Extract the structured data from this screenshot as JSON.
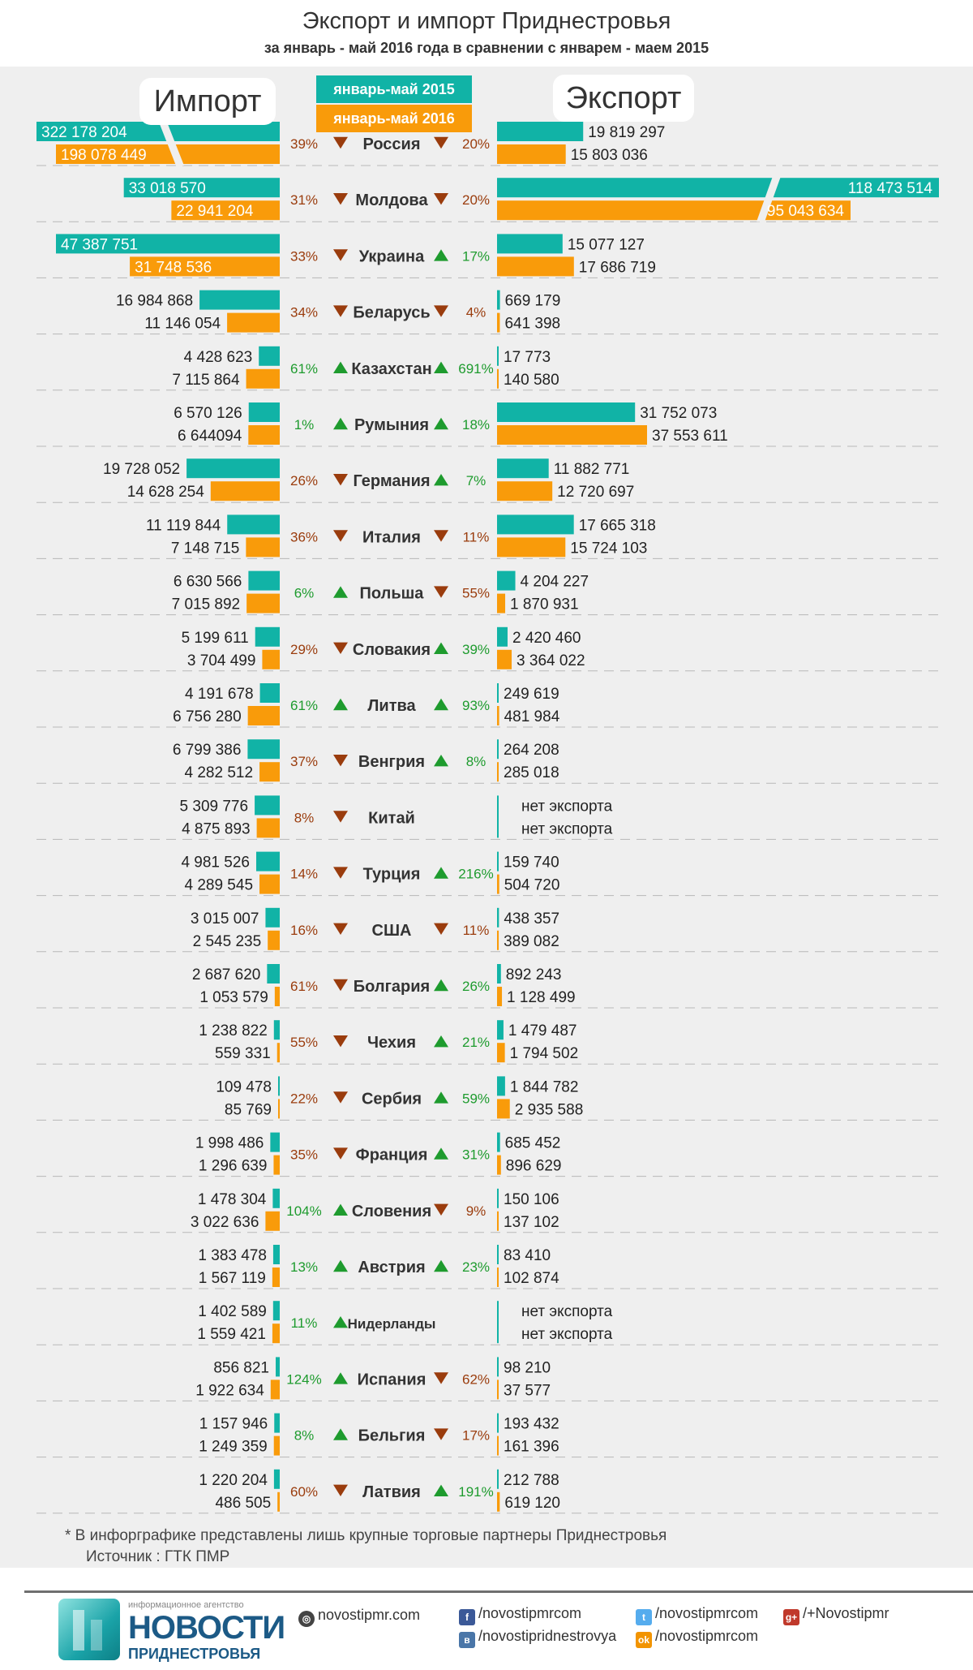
{
  "title": "Экспорт и импорт Приднестровья",
  "subtitle": "за январь - май 2016 года в сравнении с январем - маем  2015",
  "labels": {
    "import": "Импорт",
    "export": "Экспорт"
  },
  "legend": {
    "y2015": "январь-май 2015",
    "y2016": "январь-май 2016"
  },
  "colors": {
    "y2015": "#11b3a6",
    "y2016": "#f99b0a",
    "down": "#9a3c0d",
    "up": "#1e9b2e"
  },
  "chart_data": {
    "type": "bar",
    "series_names": [
      "январь-май 2015",
      "январь-май 2016"
    ],
    "countries": [
      {
        "name": "Россия",
        "imp": [
          322178204,
          198078449
        ],
        "imp_txt": [
          "322 178 204",
          "198 078 449"
        ],
        "imp_pct": "39%",
        "imp_dir": "down",
        "exp": [
          19819297,
          15803036
        ],
        "exp_txt": [
          "19 819 297",
          "15 803 036"
        ],
        "exp_pct": "20%",
        "exp_dir": "down",
        "imp_break": true
      },
      {
        "name": "Молдова",
        "imp": [
          33018570,
          22941204
        ],
        "imp_txt": [
          "33 018 570",
          "22 941 204"
        ],
        "imp_pct": "31%",
        "imp_dir": "down",
        "exp": [
          118473514,
          95043634
        ],
        "exp_txt": [
          "118 473 514",
          "95 043 634"
        ],
        "exp_pct": "20%",
        "exp_dir": "down",
        "exp_break": true
      },
      {
        "name": "Украина",
        "imp": [
          47387751,
          31748536
        ],
        "imp_txt": [
          "47 387 751",
          "31 748 536"
        ],
        "imp_pct": "33%",
        "imp_dir": "down",
        "exp": [
          15077127,
          17686719
        ],
        "exp_txt": [
          "15 077 127",
          "17 686 719"
        ],
        "exp_pct": "17%",
        "exp_dir": "up"
      },
      {
        "name": "Беларусь",
        "imp": [
          16984868,
          11146054
        ],
        "imp_txt": [
          "16 984 868",
          "11 146 054"
        ],
        "imp_pct": "34%",
        "imp_dir": "down",
        "exp": [
          669179,
          641398
        ],
        "exp_txt": [
          "669 179",
          "641 398"
        ],
        "exp_pct": "4%",
        "exp_dir": "down"
      },
      {
        "name": "Казахстан",
        "imp": [
          4428623,
          7115864
        ],
        "imp_txt": [
          "4 428 623",
          "7 115 864"
        ],
        "imp_pct": "61%",
        "imp_dir": "up",
        "exp": [
          17773,
          140580
        ],
        "exp_txt": [
          "17 773",
          "140 580"
        ],
        "exp_pct": "691%",
        "exp_dir": "up"
      },
      {
        "name": "Румыния",
        "imp": [
          6570126,
          6644094
        ],
        "imp_txt": [
          "6 570 126",
          "6 644094"
        ],
        "imp_pct": "1%",
        "imp_dir": "up",
        "exp": [
          31752073,
          37553611
        ],
        "exp_txt": [
          "31 752 073",
          "37 553 611"
        ],
        "exp_pct": "18%",
        "exp_dir": "up"
      },
      {
        "name": "Германия",
        "imp": [
          19728052,
          14628254
        ],
        "imp_txt": [
          "19 728 052",
          "14 628 254"
        ],
        "imp_pct": "26%",
        "imp_dir": "down",
        "exp": [
          11882771,
          12720697
        ],
        "exp_txt": [
          "11 882 771",
          "12 720 697"
        ],
        "exp_pct": "7%",
        "exp_dir": "up"
      },
      {
        "name": "Италия",
        "imp": [
          11119844,
          7148715
        ],
        "imp_txt": [
          "11 119 844",
          "7 148 715"
        ],
        "imp_pct": "36%",
        "imp_dir": "down",
        "exp": [
          17665318,
          15724103
        ],
        "exp_txt": [
          "17 665 318",
          "15 724 103"
        ],
        "exp_pct": "11%",
        "exp_dir": "down"
      },
      {
        "name": "Польша",
        "imp": [
          6630566,
          7015892
        ],
        "imp_txt": [
          "6 630 566",
          "7 015 892"
        ],
        "imp_pct": "6%",
        "imp_dir": "up",
        "exp": [
          4204227,
          1870931
        ],
        "exp_txt": [
          "4 204 227",
          "1 870 931"
        ],
        "exp_pct": "55%",
        "exp_dir": "down"
      },
      {
        "name": "Словакия",
        "imp": [
          5199611,
          3704499
        ],
        "imp_txt": [
          "5 199 611",
          "3 704 499"
        ],
        "imp_pct": "29%",
        "imp_dir": "down",
        "exp": [
          2420460,
          3364022
        ],
        "exp_txt": [
          "2 420 460",
          "3 364 022"
        ],
        "exp_pct": "39%",
        "exp_dir": "up"
      },
      {
        "name": "Литва",
        "imp": [
          4191678,
          6756280
        ],
        "imp_txt": [
          "4 191 678",
          "6 756 280"
        ],
        "imp_pct": "61%",
        "imp_dir": "up",
        "exp": [
          249619,
          481984
        ],
        "exp_txt": [
          "249 619",
          "481 984"
        ],
        "exp_pct": "93%",
        "exp_dir": "up"
      },
      {
        "name": "Венгрия",
        "imp": [
          6799386,
          4282512
        ],
        "imp_txt": [
          "6 799 386",
          "4 282 512"
        ],
        "imp_pct": "37%",
        "imp_dir": "down",
        "exp": [
          264208,
          285018
        ],
        "exp_txt": [
          "264 208",
          "285 018"
        ],
        "exp_pct": "8%",
        "exp_dir": "up"
      },
      {
        "name": "Китай",
        "imp": [
          5309776,
          4875893
        ],
        "imp_txt": [
          "5 309 776",
          "4 875 893"
        ],
        "imp_pct": "8%",
        "imp_dir": "down",
        "exp": [
          0,
          0
        ],
        "exp_txt": [
          "нет экспорта",
          "нет экспорта"
        ],
        "exp_pct": "",
        "exp_dir": "",
        "no_export": true
      },
      {
        "name": "Турция",
        "imp": [
          4981526,
          4289545
        ],
        "imp_txt": [
          "4 981 526",
          "4 289 545"
        ],
        "imp_pct": "14%",
        "imp_dir": "down",
        "exp": [
          159740,
          504720
        ],
        "exp_txt": [
          "159 740",
          "504 720"
        ],
        "exp_pct": "216%",
        "exp_dir": "up"
      },
      {
        "name": "США",
        "imp": [
          3015007,
          2545235
        ],
        "imp_txt": [
          "3 015 007",
          "2 545 235"
        ],
        "imp_pct": "16%",
        "imp_dir": "down",
        "exp": [
          438357,
          389082
        ],
        "exp_txt": [
          "438 357",
          "389 082"
        ],
        "exp_pct": "11%",
        "exp_dir": "down"
      },
      {
        "name": "Болгария",
        "imp": [
          2687620,
          1053579
        ],
        "imp_txt": [
          "2 687 620",
          "1 053 579"
        ],
        "imp_pct": "61%",
        "imp_dir": "down",
        "exp": [
          892243,
          1128499
        ],
        "exp_txt": [
          "892 243",
          "1 128 499"
        ],
        "exp_pct": "26%",
        "exp_dir": "up"
      },
      {
        "name": "Чехия",
        "imp": [
          1238822,
          559331
        ],
        "imp_txt": [
          "1 238 822",
          "559 331"
        ],
        "imp_pct": "55%",
        "imp_dir": "down",
        "exp": [
          1479487,
          1794502
        ],
        "exp_txt": [
          "1 479 487",
          "1 794 502"
        ],
        "exp_pct": "21%",
        "exp_dir": "up"
      },
      {
        "name": "Сербия",
        "imp": [
          109478,
          85769
        ],
        "imp_txt": [
          "109 478",
          "85 769"
        ],
        "imp_pct": "22%",
        "imp_dir": "down",
        "exp": [
          1844782,
          2935588
        ],
        "exp_txt": [
          "1 844 782",
          "2 935 588"
        ],
        "exp_pct": "59%",
        "exp_dir": "up"
      },
      {
        "name": "Франция",
        "imp": [
          1998486,
          1296639
        ],
        "imp_txt": [
          "1 998 486",
          "1 296 639"
        ],
        "imp_pct": "35%",
        "imp_dir": "down",
        "exp": [
          685452,
          896629
        ],
        "exp_txt": [
          "685 452",
          "896 629"
        ],
        "exp_pct": "31%",
        "exp_dir": "up"
      },
      {
        "name": "Словения",
        "imp": [
          1478304,
          3022636
        ],
        "imp_txt": [
          "1 478 304",
          "3 022 636"
        ],
        "imp_pct": "104%",
        "imp_dir": "up",
        "exp": [
          150106,
          137102
        ],
        "exp_txt": [
          "150 106",
          "137 102"
        ],
        "exp_pct": "9%",
        "exp_dir": "down"
      },
      {
        "name": "Австрия",
        "imp": [
          1383478,
          1567119
        ],
        "imp_txt": [
          "1 383 478",
          "1 567 119"
        ],
        "imp_pct": "13%",
        "imp_dir": "up",
        "exp": [
          83410,
          102874
        ],
        "exp_txt": [
          "83 410",
          "102 874"
        ],
        "exp_pct": "23%",
        "exp_dir": "up"
      },
      {
        "name": "Нидерланды",
        "imp": [
          1402589,
          1559421
        ],
        "imp_txt": [
          "1 402 589",
          "1 559 421"
        ],
        "imp_pct": "11%",
        "imp_dir": "up",
        "exp": [
          0,
          0
        ],
        "exp_txt": [
          "нет экспорта",
          "нет экспорта"
        ],
        "exp_pct": "",
        "exp_dir": "",
        "no_export": true
      },
      {
        "name": "Испания",
        "imp": [
          856821,
          1922634
        ],
        "imp_txt": [
          "856 821",
          "1 922 634"
        ],
        "imp_pct": "124%",
        "imp_dir": "up",
        "exp": [
          98210,
          37577
        ],
        "exp_txt": [
          "98 210",
          "37 577"
        ],
        "exp_pct": "62%",
        "exp_dir": "down"
      },
      {
        "name": "Бельгия",
        "imp": [
          1157946,
          1249359
        ],
        "imp_txt": [
          "1 157 946",
          "1 249 359"
        ],
        "imp_pct": "8%",
        "imp_dir": "up",
        "exp": [
          193432,
          161396
        ],
        "exp_txt": [
          "193 432",
          "161 396"
        ],
        "exp_pct": "17%",
        "exp_dir": "down"
      },
      {
        "name": "Латвия",
        "imp": [
          1220204,
          486505
        ],
        "imp_txt": [
          "1 220 204",
          "486 505"
        ],
        "imp_pct": "60%",
        "imp_dir": "down",
        "exp": [
          212788,
          619120
        ],
        "exp_txt": [
          "212 788",
          "619 120"
        ],
        "exp_pct": "191%",
        "exp_dir": "up"
      }
    ]
  },
  "footnote": {
    "line1": "*   В инфорграфике представлены лишь крупные торговые партнеры Приднестровья",
    "line2": "Источник : ГТК ПМР"
  },
  "footer": {
    "agency": "информационное агентство",
    "brand": "НОВОСТИ",
    "brand_sub": "ПРИДНЕСТРОВЬЯ",
    "site": "novostipmr.com",
    "facebook": "/novostipmrcom",
    "twitter": "/novostipmrcom",
    "gplus": "/+Novostipmr",
    "vk": "/novostipridnestrovya",
    "ok": "/novostipmrcom"
  }
}
